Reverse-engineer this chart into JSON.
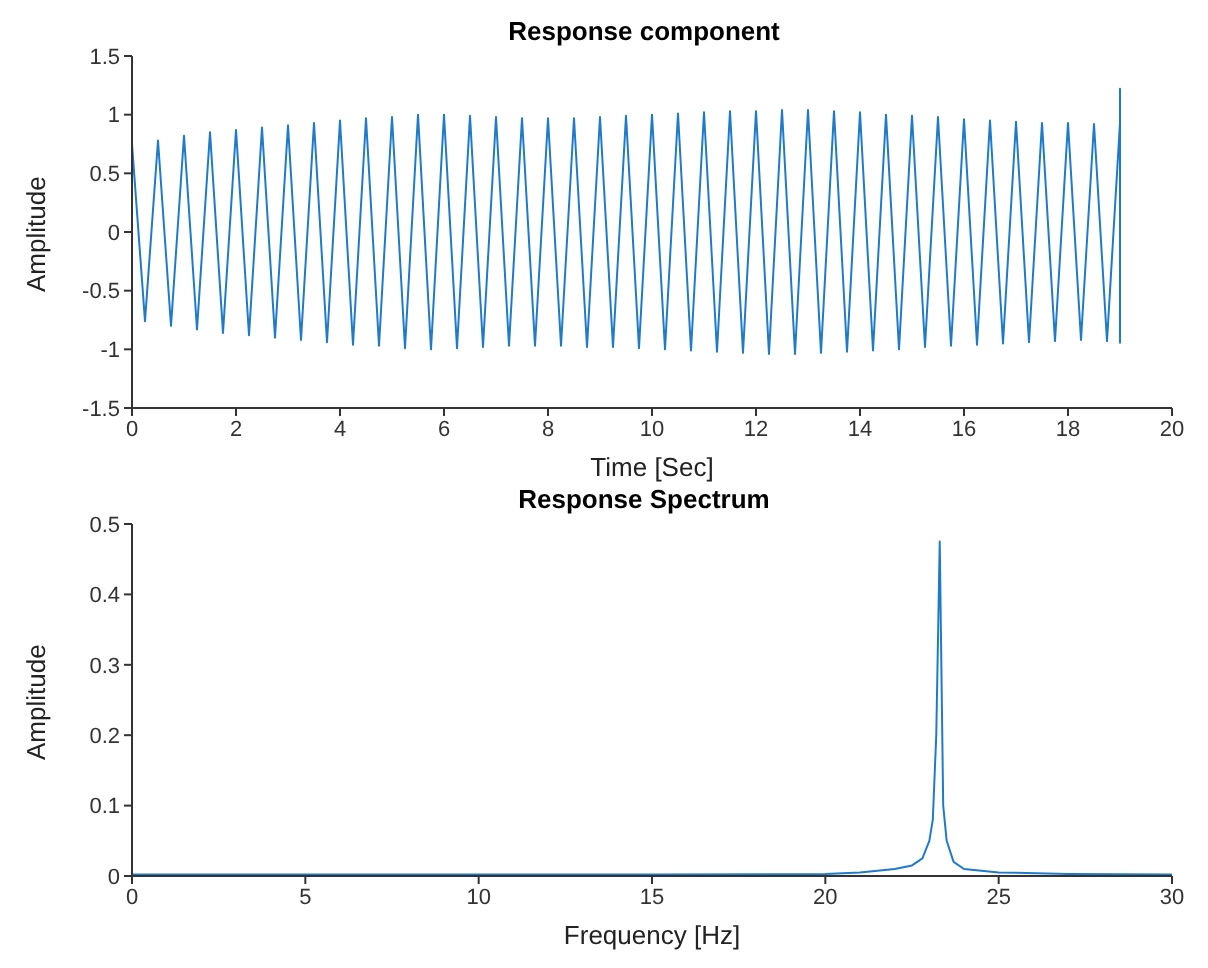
{
  "chart_data": [
    {
      "type": "line",
      "title": "Response component",
      "xlabel": "Time [Sec]",
      "ylabel": "Amplitude",
      "xlim": [
        0,
        20
      ],
      "xticks": [
        0,
        2,
        4,
        6,
        8,
        10,
        12,
        14,
        16,
        18,
        20
      ],
      "ylim": [
        -1.5,
        1.5
      ],
      "yticks": [
        -1.5,
        -1,
        -0.5,
        0,
        0.5,
        1,
        1.5
      ],
      "series": [
        {
          "color": "#1f7bc8",
          "x": [
            0,
            0.25,
            0.5,
            0.75,
            1,
            1.25,
            1.5,
            1.75,
            2,
            2.25,
            2.5,
            2.75,
            3,
            3.25,
            3.5,
            3.75,
            4,
            4.25,
            4.5,
            4.75,
            5,
            5.25,
            5.5,
            5.75,
            6,
            6.25,
            6.5,
            6.75,
            7,
            7.25,
            7.5,
            7.75,
            8,
            8.25,
            8.5,
            8.75,
            9,
            9.25,
            9.5,
            9.75,
            10,
            10.25,
            10.5,
            10.75,
            11,
            11.25,
            11.5,
            11.75,
            12,
            12.25,
            12.5,
            12.75,
            13,
            13.25,
            13.5,
            13.75,
            14,
            14.25,
            14.5,
            14.75,
            15,
            15.25,
            15.5,
            15.75,
            16,
            16.25,
            16.5,
            16.75,
            17,
            17.25,
            17.5,
            17.75,
            18,
            18.25,
            18.5,
            18.75,
            19,
            19,
            19
          ],
          "values": [
            0.75,
            -0.76,
            0.78,
            -0.8,
            0.82,
            -0.83,
            0.85,
            -0.86,
            0.87,
            -0.88,
            0.89,
            -0.9,
            0.91,
            -0.92,
            0.93,
            -0.94,
            0.95,
            -0.96,
            0.97,
            -0.97,
            0.98,
            -0.99,
            1.0,
            -1.0,
            1.0,
            -0.99,
            0.99,
            -0.98,
            0.98,
            -0.97,
            0.97,
            -0.97,
            0.97,
            -0.97,
            0.97,
            -0.98,
            0.98,
            -0.98,
            0.99,
            -0.99,
            1.0,
            -1.0,
            1.01,
            -1.01,
            1.02,
            -1.02,
            1.03,
            -1.03,
            1.03,
            -1.04,
            1.04,
            -1.04,
            1.04,
            -1.03,
            1.03,
            -1.02,
            1.02,
            -1.01,
            1.0,
            -1.0,
            0.99,
            -0.98,
            0.98,
            -0.97,
            0.96,
            -0.96,
            0.95,
            -0.95,
            0.94,
            -0.94,
            0.93,
            -0.93,
            0.93,
            -0.92,
            0.92,
            -0.93,
            0.93,
            1.22,
            -0.95
          ]
        }
      ]
    },
    {
      "type": "line",
      "title": "Response Spectrum",
      "xlabel": "Frequency [Hz]",
      "ylabel": "Amplitude",
      "xlim": [
        0,
        30
      ],
      "xticks": [
        0,
        5,
        10,
        15,
        20,
        25,
        30
      ],
      "ylim": [
        0,
        0.5
      ],
      "yticks": [
        0,
        0.1,
        0.2,
        0.3,
        0.4,
        0.5
      ],
      "series": [
        {
          "color": "#1f7bc8",
          "x": [
            0,
            5,
            10,
            15,
            20,
            21,
            22,
            22.5,
            22.8,
            23,
            23.1,
            23.2,
            23.3,
            23.4,
            23.5,
            23.7,
            24,
            25,
            27,
            30
          ],
          "values": [
            0.002,
            0.002,
            0.002,
            0.002,
            0.003,
            0.005,
            0.01,
            0.015,
            0.025,
            0.05,
            0.08,
            0.2,
            0.475,
            0.1,
            0.05,
            0.02,
            0.01,
            0.005,
            0.003,
            0.002
          ]
        }
      ]
    }
  ]
}
